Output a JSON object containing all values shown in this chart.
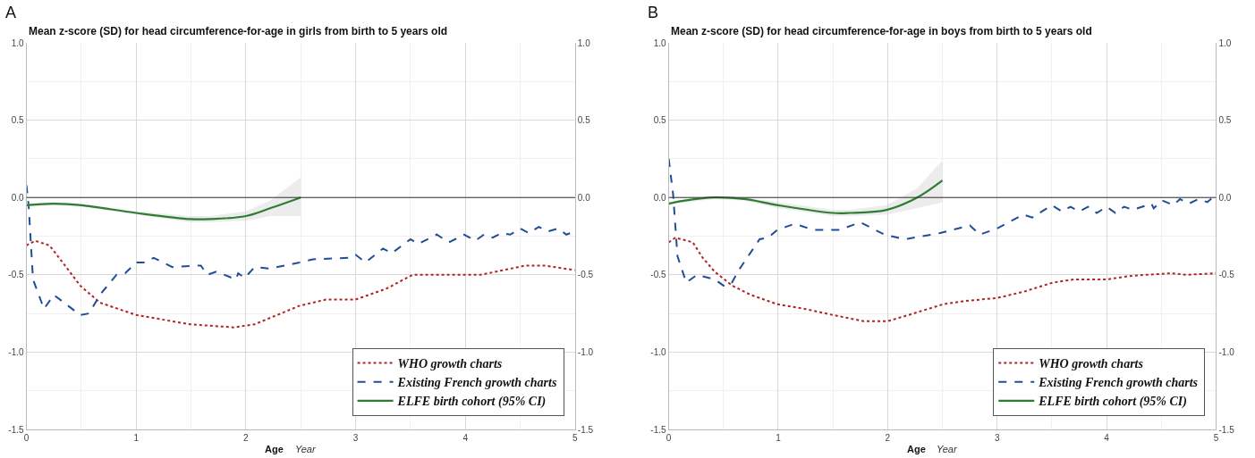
{
  "chart_data": [
    {
      "type": "line",
      "title": "Mean z-score (SD) for head circumference-for-age in girls from birth to 5 years old",
      "xlabel": "Age",
      "annotations": [
        "A",
        "Year"
      ],
      "xlim": [
        0,
        5
      ],
      "xticks": [
        0,
        1,
        2,
        3,
        4,
        5
      ],
      "ylim": [
        -1.5,
        1.0
      ],
      "yticks": [
        {
          "value": -1.5,
          "label": "-1.5"
        },
        {
          "value": -1.0,
          "label": "-1.0"
        },
        {
          "value": -0.5,
          "label": "-0.5"
        },
        {
          "value": 0,
          "label": "0.0"
        },
        {
          "value": 0.5,
          "label": "0.5"
        },
        {
          "value": 1.0,
          "label": "1.0"
        }
      ],
      "y2lim": [
        -1.5,
        1.0
      ],
      "y2ticks": [
        {
          "value": -1.5,
          "label": "-1.5"
        },
        {
          "value": -1.0,
          "label": "-1.0"
        },
        {
          "value": -0.5,
          "label": "-0.5"
        },
        {
          "value": 0,
          "label": "0.0"
        },
        {
          "value": 0.5,
          "label": "0.5"
        },
        {
          "value": 1.0,
          "label": "1.0"
        }
      ],
      "grid": true,
      "legend": "bottom right",
      "ref_lines": [
        {
          "axis": "y",
          "value": 0,
          "color": "#333333"
        }
      ],
      "series": [
        {
          "name": "WHO growth charts",
          "color": "#b22222",
          "line_style": "dotted",
          "x": [
            0,
            0.08,
            0.21,
            0.33,
            0.49,
            0.67,
            1.0,
            1.49,
            1.89,
            2.08,
            2.49,
            2.73,
            3.0,
            3.28,
            3.52,
            3.95,
            4.14,
            4.55,
            4.72,
            5.0
          ],
          "values": [
            -0.31,
            -0.28,
            -0.31,
            -0.42,
            -0.57,
            -0.68,
            -0.76,
            -0.82,
            -0.84,
            -0.82,
            -0.7,
            -0.66,
            -0.66,
            -0.59,
            -0.5,
            -0.5,
            -0.5,
            -0.44,
            -0.44,
            -0.47
          ]
        },
        {
          "name": "Existing French growth charts",
          "color": "#1f4e96",
          "line_style": "dashed",
          "x": [
            0,
            0.02,
            0.06,
            0.16,
            0.25,
            0.49,
            0.57,
            0.67,
            0.82,
            0.9,
            1.0,
            1.08,
            1.16,
            1.33,
            1.59,
            1.65,
            1.73,
            1.91,
            1.93,
            1.99,
            2.08,
            2.22,
            2.49,
            2.61,
            2.93,
            3.0,
            3.09,
            3.25,
            3.33,
            3.5,
            3.57,
            3.74,
            3.85,
            3.99,
            4.09,
            4.17,
            4.25,
            4.33,
            4.41,
            4.5,
            4.58,
            4.67,
            4.75,
            4.85,
            4.92,
            5.0
          ],
          "values": [
            0.08,
            -0.05,
            -0.53,
            -0.72,
            -0.63,
            -0.76,
            -0.75,
            -0.63,
            -0.5,
            -0.49,
            -0.42,
            -0.42,
            -0.39,
            -0.45,
            -0.44,
            -0.5,
            -0.48,
            -0.53,
            -0.49,
            -0.52,
            -0.45,
            -0.46,
            -0.42,
            -0.4,
            -0.39,
            -0.37,
            -0.42,
            -0.33,
            -0.36,
            -0.27,
            -0.3,
            -0.24,
            -0.29,
            -0.24,
            -0.28,
            -0.24,
            -0.26,
            -0.23,
            -0.24,
            -0.2,
            -0.23,
            -0.19,
            -0.22,
            -0.2,
            -0.24,
            -0.22
          ]
        },
        {
          "name": "ELFE birth cohort (95% CI)",
          "color": "#2e7d32",
          "line_style": "solid",
          "x": [
            0,
            0.25,
            0.5,
            1.0,
            1.5,
            1.67,
            2.0,
            2.22,
            2.5
          ],
          "values": [
            -0.05,
            -0.04,
            -0.05,
            -0.1,
            -0.14,
            -0.14,
            -0.12,
            -0.07,
            0.0
          ],
          "lower": [
            -0.06,
            -0.05,
            -0.06,
            -0.11,
            -0.16,
            -0.16,
            -0.15,
            -0.12,
            -0.12
          ],
          "upper": [
            -0.04,
            -0.03,
            -0.04,
            -0.09,
            -0.12,
            -0.12,
            -0.09,
            -0.02,
            0.13
          ]
        }
      ]
    },
    {
      "type": "line",
      "title": "Mean z-score (SD) for head circumference-for-age in boys from birth to 5 years old",
      "xlabel": "Age",
      "annotations": [
        "B",
        "Year"
      ],
      "xlim": [
        0,
        5
      ],
      "xticks": [
        0,
        1,
        2,
        3,
        4,
        5
      ],
      "ylim": [
        -1.5,
        1.0
      ],
      "yticks": [
        {
          "value": -1.5,
          "label": "-1.5"
        },
        {
          "value": -1.0,
          "label": "-1.0"
        },
        {
          "value": -0.5,
          "label": "-0.5"
        },
        {
          "value": 0,
          "label": "0.0"
        },
        {
          "value": 0.5,
          "label": "0.5"
        },
        {
          "value": 1.0,
          "label": "1.0"
        }
      ],
      "y2lim": [
        -1.5,
        1.0
      ],
      "y2ticks": [
        {
          "value": -1.5,
          "label": "-1.5"
        },
        {
          "value": -1.0,
          "label": "-1.0"
        },
        {
          "value": -0.5,
          "label": "-0.5"
        },
        {
          "value": 0,
          "label": "0.0"
        },
        {
          "value": 0.5,
          "label": "0.5"
        },
        {
          "value": 1.0,
          "label": "1.0"
        }
      ],
      "grid": true,
      "legend": "bottom right",
      "ref_lines": [
        {
          "axis": "y",
          "value": 0,
          "color": "#333333"
        }
      ],
      "series": [
        {
          "name": "WHO growth charts",
          "color": "#b22222",
          "line_style": "dotted",
          "x": [
            0,
            0.06,
            0.22,
            0.31,
            0.42,
            0.58,
            0.75,
            0.99,
            1.24,
            1.5,
            1.78,
            2.0,
            2.19,
            2.51,
            2.7,
            3.0,
            3.24,
            3.51,
            3.7,
            4.0,
            4.19,
            4.36,
            4.59,
            4.73,
            5.0
          ],
          "values": [
            -0.29,
            -0.26,
            -0.29,
            -0.39,
            -0.48,
            -0.57,
            -0.63,
            -0.69,
            -0.72,
            -0.76,
            -0.8,
            -0.8,
            -0.76,
            -0.69,
            -0.67,
            -0.65,
            -0.61,
            -0.55,
            -0.53,
            -0.53,
            -0.51,
            -0.5,
            -0.49,
            -0.5,
            -0.49
          ]
        },
        {
          "name": "Existing French growth charts",
          "color": "#1f4e96",
          "line_style": "dashed",
          "x": [
            0,
            0.04,
            0.08,
            0.16,
            0.26,
            0.42,
            0.5,
            0.57,
            0.64,
            0.83,
            0.91,
            0.99,
            1.15,
            1.32,
            1.56,
            1.75,
            1.97,
            2.16,
            2.48,
            2.75,
            2.84,
            3.0,
            3.24,
            3.32,
            3.5,
            3.59,
            3.67,
            3.75,
            3.83,
            3.91,
            4.0,
            4.08,
            4.16,
            4.24,
            4.41,
            4.43,
            4.51,
            4.61,
            4.67,
            4.75,
            4.84,
            4.92,
            5.0
          ],
          "values": [
            0.25,
            0.02,
            -0.38,
            -0.55,
            -0.5,
            -0.53,
            -0.57,
            -0.56,
            -0.47,
            -0.27,
            -0.26,
            -0.21,
            -0.17,
            -0.21,
            -0.21,
            -0.16,
            -0.24,
            -0.27,
            -0.23,
            -0.18,
            -0.24,
            -0.2,
            -0.11,
            -0.13,
            -0.05,
            -0.09,
            -0.06,
            -0.09,
            -0.06,
            -0.1,
            -0.06,
            -0.1,
            -0.06,
            -0.08,
            -0.04,
            -0.07,
            -0.02,
            -0.05,
            -0.01,
            -0.04,
            -0.01,
            -0.03,
            0.02
          ]
        },
        {
          "name": "ELFE birth cohort (95% CI)",
          "color": "#2e7d32",
          "line_style": "solid",
          "x": [
            0,
            0.15,
            0.42,
            0.69,
            1.0,
            1.5,
            1.65,
            1.99,
            2.27,
            2.5
          ],
          "values": [
            -0.04,
            -0.02,
            0.0,
            -0.01,
            -0.05,
            -0.1,
            -0.1,
            -0.08,
            0.0,
            0.11
          ],
          "lower": [
            -0.05,
            -0.03,
            -0.01,
            -0.02,
            -0.07,
            -0.12,
            -0.12,
            -0.11,
            -0.07,
            -0.03
          ],
          "upper": [
            -0.03,
            -0.01,
            0.01,
            0.0,
            -0.03,
            -0.08,
            -0.08,
            -0.05,
            0.06,
            0.24
          ]
        }
      ]
    }
  ]
}
